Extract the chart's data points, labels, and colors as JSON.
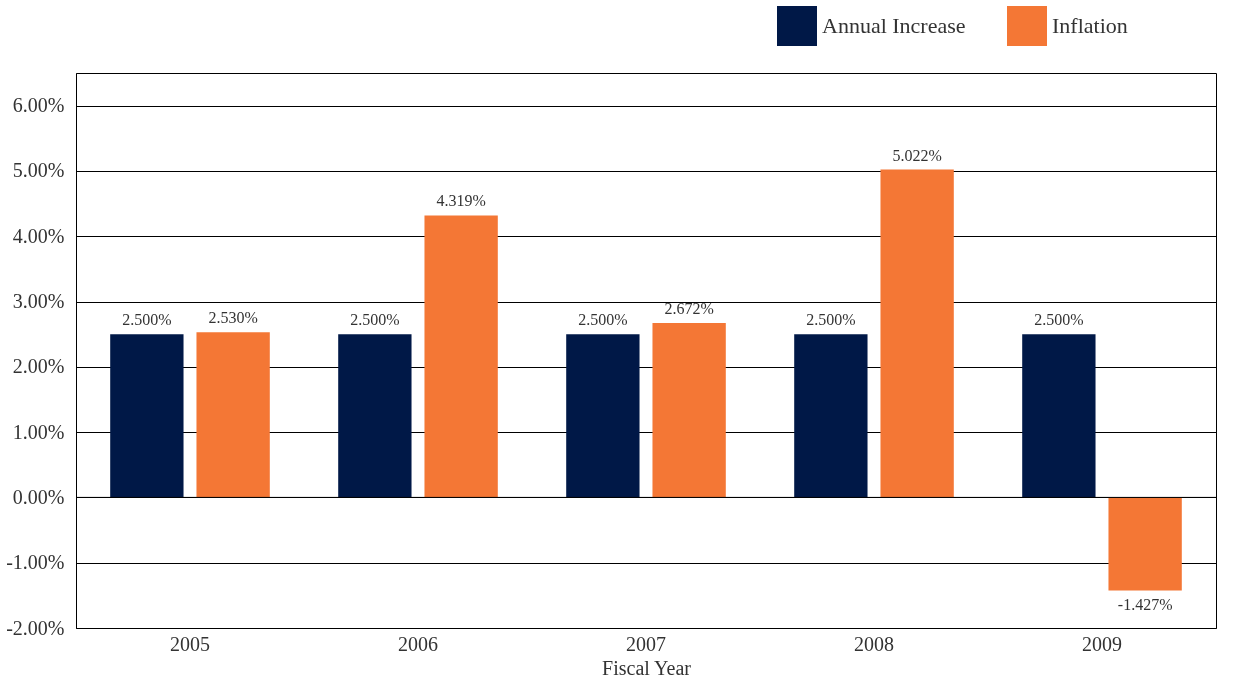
{
  "chart_data": {
    "type": "bar",
    "xlabel": "Fiscal Year",
    "categories": [
      "2005",
      "2006",
      "2007",
      "2008",
      "2009"
    ],
    "series": [
      {
        "name": "Annual Increase",
        "color": "#001847",
        "values": [
          2.5,
          2.5,
          2.5,
          2.5,
          2.5
        ],
        "value_labels": [
          "2.500%",
          "2.500%",
          "2.500%",
          "2.500%",
          "2.500%"
        ]
      },
      {
        "name": "Inflation",
        "color": "#f47735",
        "values": [
          2.53,
          4.319,
          2.672,
          5.022,
          -1.427
        ],
        "value_labels": [
          "2.530%",
          "4.319%",
          "2.672%",
          "5.022%",
          "-1.427%"
        ]
      }
    ],
    "ylim": [
      -2,
      6.5
    ],
    "yticks": [
      {
        "value": -2,
        "label": "-2.00%"
      },
      {
        "value": -1,
        "label": "-1.00%"
      },
      {
        "value": 0,
        "label": "0.00%"
      },
      {
        "value": 1,
        "label": "1.00%"
      },
      {
        "value": 2,
        "label": "2.00%"
      },
      {
        "value": 3,
        "label": "3.00%"
      },
      {
        "value": 4,
        "label": "4.00%"
      },
      {
        "value": 5,
        "label": "5.00%"
      },
      {
        "value": 6,
        "label": "6.00%"
      }
    ],
    "grid": "y",
    "legend": "top right"
  }
}
